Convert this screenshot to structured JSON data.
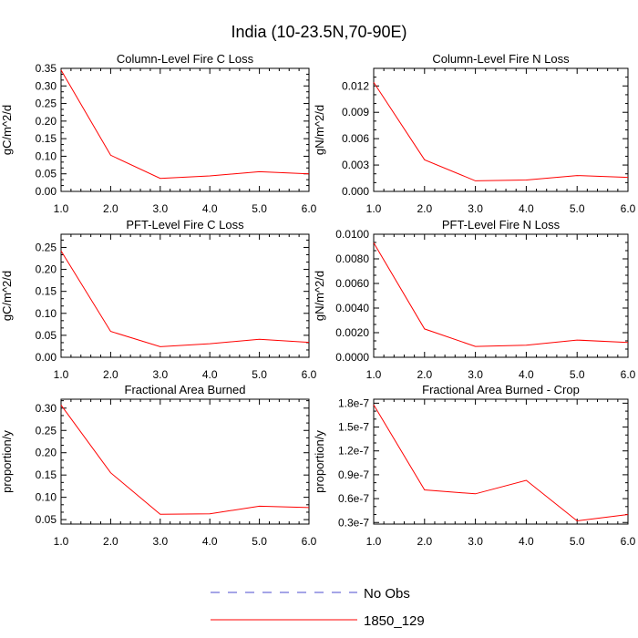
{
  "title": "India (10-23.5N,70-90E)",
  "legend": {
    "position": "bottom-center",
    "entries": [
      {
        "label": "No Obs",
        "color": "#4b4bcf",
        "dash": "dashed"
      },
      {
        "label": "1850_129",
        "color": "#ff0000",
        "dash": "solid"
      }
    ]
  },
  "chart_data": [
    {
      "type": "line",
      "title": "Column-Level Fire C Loss",
      "xlabel": "",
      "ylabel": "gC/m^2/d",
      "xlim": [
        1,
        6
      ],
      "ylim": [
        0,
        0.35
      ],
      "x": [
        1,
        2,
        3,
        4,
        5,
        6
      ],
      "xticks": [
        1,
        2,
        3,
        4,
        5,
        6
      ],
      "xtick_labels": [
        "1.0",
        "2.0",
        "3.0",
        "4.0",
        "5.0",
        "6.0"
      ],
      "yticks": [
        0,
        0.05,
        0.1,
        0.15,
        0.2,
        0.25,
        0.3,
        0.35
      ],
      "ytick_labels": [
        "0.00",
        "0.05",
        "0.10",
        "0.15",
        "0.20",
        "0.25",
        "0.30",
        "0.35"
      ],
      "series": [
        {
          "name": "1850_129",
          "color": "#ff0000",
          "values": [
            0.345,
            0.103,
            0.037,
            0.044,
            0.056,
            0.05
          ]
        }
      ]
    },
    {
      "type": "line",
      "title": "Column-Level Fire N Loss",
      "xlabel": "",
      "ylabel": "gN/m^2/d",
      "xlim": [
        1,
        6
      ],
      "ylim": [
        0,
        0.014
      ],
      "x": [
        1,
        2,
        3,
        4,
        5,
        6
      ],
      "xticks": [
        1,
        2,
        3,
        4,
        5,
        6
      ],
      "xtick_labels": [
        "1.0",
        "2.0",
        "3.0",
        "4.0",
        "5.0",
        "6.0"
      ],
      "yticks": [
        0,
        0.003,
        0.006,
        0.009,
        0.012
      ],
      "ytick_labels": [
        "0.000",
        "0.003",
        "0.006",
        "0.009",
        "0.012"
      ],
      "series": [
        {
          "name": "1850_129",
          "color": "#ff0000",
          "values": [
            0.0124,
            0.0036,
            0.0012,
            0.0013,
            0.0018,
            0.0016
          ]
        }
      ]
    },
    {
      "type": "line",
      "title": "PFT-Level Fire C Loss",
      "xlabel": "",
      "ylabel": "gC/m^2/d",
      "xlim": [
        1,
        6
      ],
      "ylim": [
        0,
        0.28
      ],
      "x": [
        1,
        2,
        3,
        4,
        5,
        6
      ],
      "xticks": [
        1,
        2,
        3,
        4,
        5,
        6
      ],
      "xtick_labels": [
        "1.0",
        "2.0",
        "3.0",
        "4.0",
        "5.0",
        "6.0"
      ],
      "yticks": [
        0,
        0.05,
        0.1,
        0.15,
        0.2,
        0.25
      ],
      "ytick_labels": [
        "0.00",
        "0.05",
        "0.10",
        "0.15",
        "0.20",
        "0.25"
      ],
      "series": [
        {
          "name": "1850_129",
          "color": "#ff0000",
          "values": [
            0.242,
            0.059,
            0.024,
            0.031,
            0.041,
            0.034
          ]
        }
      ]
    },
    {
      "type": "line",
      "title": "PFT-Level Fire N Loss",
      "xlabel": "",
      "ylabel": "gN/m^2/d",
      "xlim": [
        1,
        6
      ],
      "ylim": [
        0,
        0.01
      ],
      "x": [
        1,
        2,
        3,
        4,
        5,
        6
      ],
      "xticks": [
        1,
        2,
        3,
        4,
        5,
        6
      ],
      "xtick_labels": [
        "1.0",
        "2.0",
        "3.0",
        "4.0",
        "5.0",
        "6.0"
      ],
      "yticks": [
        0,
        0.002,
        0.004,
        0.006,
        0.008,
        0.01
      ],
      "ytick_labels": [
        "0.0000",
        "0.0020",
        "0.0040",
        "0.0060",
        "0.0080",
        "0.0100"
      ],
      "series": [
        {
          "name": "1850_129",
          "color": "#ff0000",
          "values": [
            0.0093,
            0.0023,
            0.00088,
            0.00098,
            0.0014,
            0.0012
          ]
        }
      ]
    },
    {
      "type": "line",
      "title": "Fractional Area Burned",
      "xlabel": "",
      "ylabel": "proportion/y",
      "xlim": [
        1,
        6
      ],
      "ylim": [
        0.04,
        0.32
      ],
      "x": [
        1,
        2,
        3,
        4,
        5,
        6
      ],
      "xticks": [
        1,
        2,
        3,
        4,
        5,
        6
      ],
      "xtick_labels": [
        "1.0",
        "2.0",
        "3.0",
        "4.0",
        "5.0",
        "6.0"
      ],
      "yticks": [
        0.05,
        0.1,
        0.15,
        0.2,
        0.25,
        0.3
      ],
      "ytick_labels": [
        "0.05",
        "0.10",
        "0.15",
        "0.20",
        "0.25",
        "0.30"
      ],
      "series": [
        {
          "name": "1850_129",
          "color": "#ff0000",
          "values": [
            0.307,
            0.155,
            0.062,
            0.063,
            0.08,
            0.077
          ]
        }
      ]
    },
    {
      "type": "line",
      "title": "Fractional Area Burned - Crop",
      "xlabel": "",
      "ylabel": "proportion/y",
      "xlim": [
        1,
        6
      ],
      "ylim": [
        2.8e-08,
        1.85e-07
      ],
      "x": [
        1,
        2,
        3,
        4,
        5,
        6
      ],
      "xticks": [
        1,
        2,
        3,
        4,
        5,
        6
      ],
      "xtick_labels": [
        "1.0",
        "2.0",
        "3.0",
        "4.0",
        "5.0",
        "6.0"
      ],
      "yticks": [
        3e-08,
        6e-08,
        9e-08,
        1.2e-07,
        1.5e-07,
        1.8e-07
      ],
      "ytick_labels": [
        "0.3e-7",
        "0.6e-7",
        "0.9e-7",
        "1.2e-7",
        "1.5e-7",
        "1.8e-7"
      ],
      "series": [
        {
          "name": "1850_129",
          "color": "#ff0000",
          "values": [
            1.78e-07,
            7.1e-08,
            6.6e-08,
            8.3e-08,
            3.2e-08,
            4e-08
          ]
        }
      ]
    }
  ]
}
